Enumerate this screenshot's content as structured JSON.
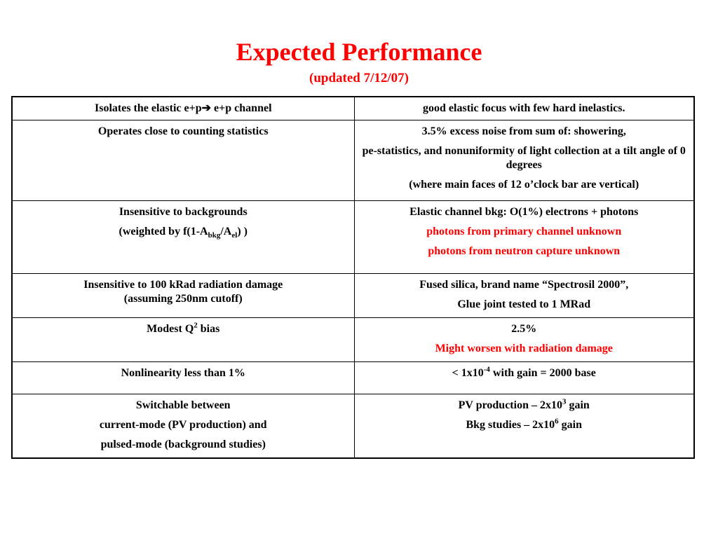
{
  "title": "Expected Performance",
  "subtitle": "(updated 7/12/07)",
  "rows": [
    {
      "left": {
        "a": "Isolates the elastic e+p",
        "arrow": "➔",
        "b": " e+p channel"
      },
      "right": [
        "good elastic focus with few  hard inelastics."
      ]
    },
    {
      "left": [
        "Operates close to counting statistics"
      ],
      "right": [
        "3.5% excess noise from sum of: showering,",
        "pe-statistics, and nonuniformity of light collection at a tilt angle of 0 degrees",
        "(where main faces of 12 o’clock bar are vertical)"
      ]
    },
    {
      "left": {
        "line1": "Insensitive to backgrounds",
        "w1": "(weighted by f(1-A",
        "sub1": "bkg",
        "w2": "/A",
        "sub2": "el",
        "w3": ") )"
      },
      "right": [
        {
          "text": "Elastic channel bkg: O(1%)  electrons + photons",
          "color": "#000000"
        },
        {
          "text": "photons from primary channel unknown",
          "color": "#ff0000"
        },
        {
          "text": "photons from neutron capture unknown",
          "color": "#ff0000"
        }
      ]
    },
    {
      "left": [
        "Insensitive to 100 kRad radiation damage",
        "(assuming 250nm cutoff)"
      ],
      "right": [
        "Fused silica, brand name “Spectrosil 2000”,",
        "Glue joint tested to 1 MRad"
      ]
    },
    {
      "left": {
        "a": "Modest Q",
        "sup": "2",
        "b": " bias"
      },
      "right": [
        {
          "text": "2.5%",
          "color": "#000000"
        },
        {
          "text": "Might worsen with radiation damage",
          "color": "#ff0000"
        }
      ]
    },
    {
      "left": [
        "Nonlinearity less than 1%"
      ],
      "right": {
        "a": "< 1x10",
        "sup": "-4",
        "b": " with gain = 2000 base"
      }
    },
    {
      "left": [
        "Switchable between",
        "current-mode (PV production) and",
        "pulsed-mode (background studies)"
      ],
      "right": {
        "l1a": "PV production –  2x10",
        "l1sup": "3",
        "l1b": " gain",
        "l2a": "Bkg studies – 2x10",
        "l2sup": "6",
        "l2b": " gain"
      }
    }
  ],
  "colors": {
    "title": "#ff0000",
    "highlight": "#ff0000",
    "text": "#000000"
  }
}
